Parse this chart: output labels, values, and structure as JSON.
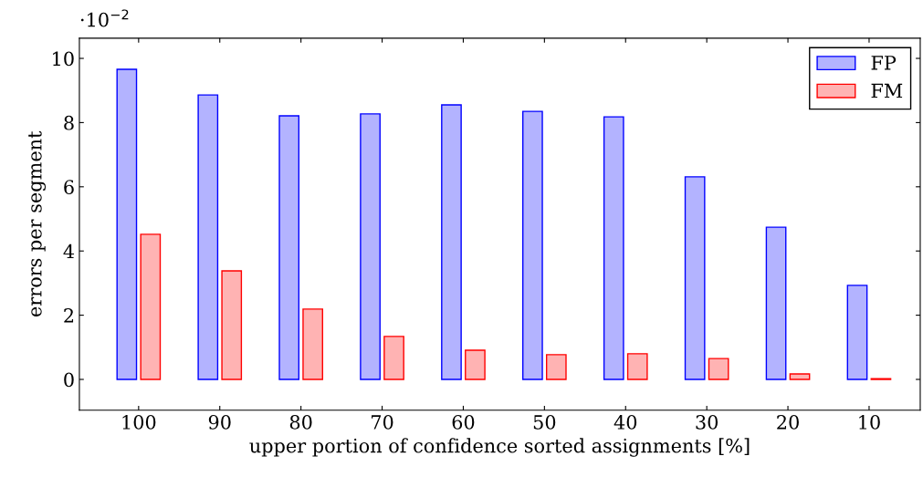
{
  "chart_data": {
    "type": "bar",
    "xlabel": "upper portion of confidence sorted assignments [%]",
    "ylabel": "errors per segment",
    "categories": [
      "100",
      "90",
      "80",
      "70",
      "60",
      "50",
      "40",
      "30",
      "20",
      "10"
    ],
    "series": [
      {
        "name": "FP",
        "color": "#b3b3ff",
        "values": [
          9.66,
          8.86,
          8.21,
          8.27,
          8.55,
          8.35,
          8.18,
          6.31,
          4.74,
          2.93
        ]
      },
      {
        "name": "FM",
        "color": "#ffb3b3",
        "values": [
          4.52,
          3.38,
          2.19,
          1.34,
          0.91,
          0.77,
          0.8,
          0.65,
          0.17,
          0.02
        ]
      }
    ],
    "ylim": [
      -0.96,
      10.63
    ],
    "yticks": [
      0,
      2,
      4,
      6,
      8,
      10
    ],
    "annotations": [
      "·10$^{−2}$"
    ],
    "legend": "top right",
    "grid": false
  }
}
